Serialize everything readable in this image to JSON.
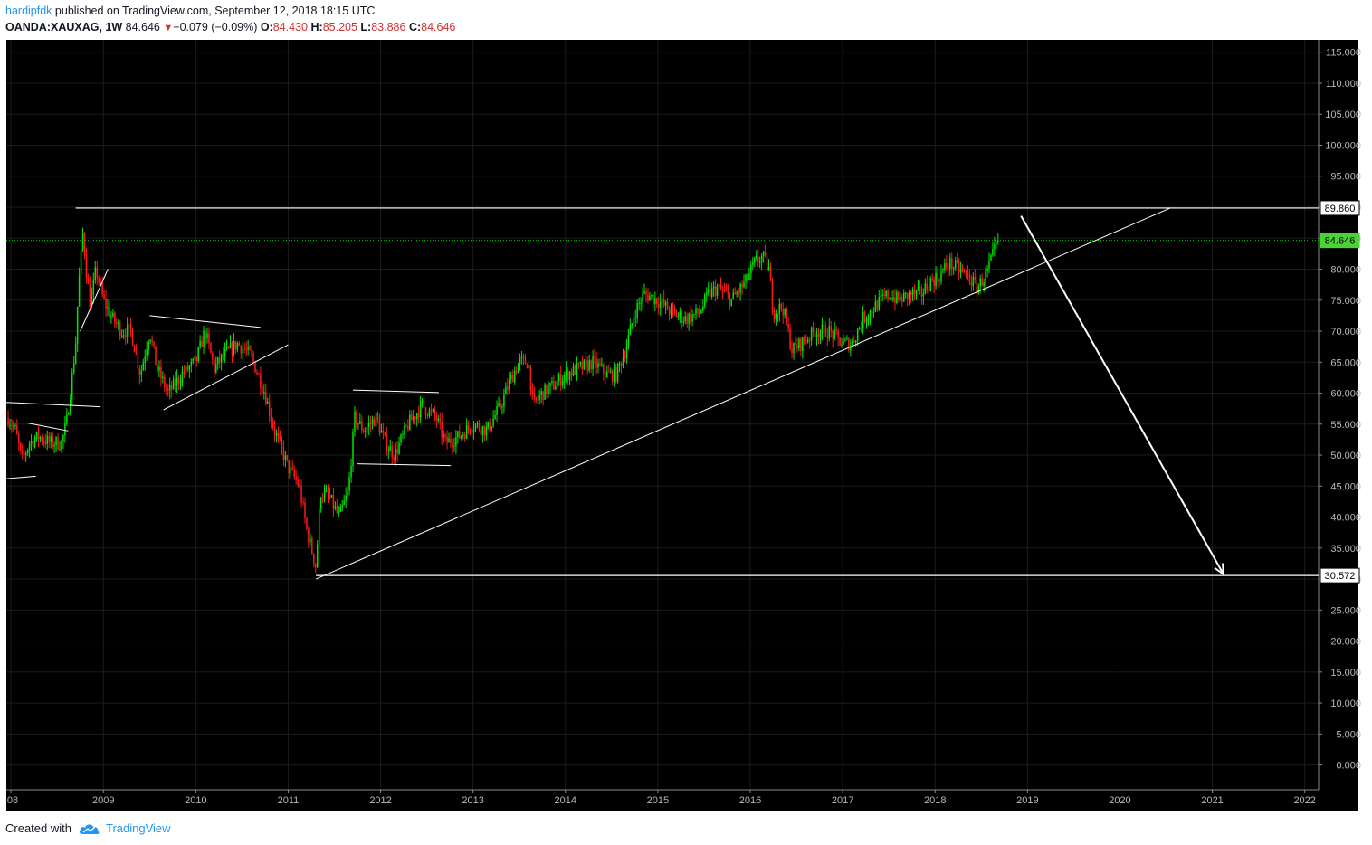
{
  "header": {
    "author": "hardipfdk",
    "published": "published on TradingView.com, September 12, 2018 18:15 UTC",
    "symbol": "OANDA:XAUXAG, 1W",
    "last": "84.646",
    "change": "−0.079 (−0.09%)",
    "o_label": "O:",
    "o_value": "84.430",
    "h_label": "H:",
    "h_value": "85.205",
    "l_label": "L:",
    "l_value": "83.886",
    "c_label": "C:",
    "c_value": "84.646"
  },
  "footer": {
    "created_with": "Created with",
    "brand": "TradingView",
    "logo_icon": "tradingview-cloud-icon"
  },
  "colors": {
    "background": "#000000",
    "up": "#00e600",
    "down": "#ff1a1a",
    "drawing": "#ffffff",
    "price_line": "#00d000",
    "price_label": "#4cd137"
  },
  "chart_data": {
    "type": "candlestick",
    "symbol": "OANDA:XAUXAG",
    "timeframe": "1W",
    "x_axis_labels": [
      "08",
      "2009",
      "2010",
      "2011",
      "2012",
      "2013",
      "2014",
      "2015",
      "2016",
      "2017",
      "2018",
      "2019",
      "2020",
      "2021",
      "2022"
    ],
    "y_axis_labels": [
      "115.000",
      "110.000",
      "105.000",
      "100.000",
      "95.000",
      "90.000",
      "85.000",
      "80.000",
      "75.000",
      "70.000",
      "65.000",
      "60.000",
      "55.000",
      "50.000",
      "45.000",
      "40.000",
      "35.000",
      "30.000",
      "25.000",
      "20.000",
      "15.000",
      "10.000",
      "5.000",
      "0.000"
    ],
    "ylim": [
      -4,
      117
    ],
    "xlim": [
      2007.95,
      2022.15
    ],
    "current_price": 84.646,
    "price_labels": [
      {
        "value": 89.86,
        "text": "89.860"
      },
      {
        "value": 84.646,
        "text": "84.646"
      },
      {
        "value": 30.572,
        "text": "30.572"
      }
    ],
    "horizontal_lines": [
      {
        "x1": 2008.7,
        "x2": 2022.15,
        "y": 89.86
      },
      {
        "x1": 2011.3,
        "x2": 2022.15,
        "y": 30.572
      }
    ],
    "trendlines": [
      {
        "x1": 2011.3,
        "y1": 30.0,
        "x2": 2020.55,
        "y2": 89.9
      },
      {
        "x1": 2008.75,
        "y1": 70.0,
        "x2": 2009.05,
        "y2": 80.0
      },
      {
        "x1": 2009.5,
        "y1": 72.5,
        "x2": 2010.7,
        "y2": 70.6
      },
      {
        "x1": 2009.65,
        "y1": 57.3,
        "x2": 2011.0,
        "y2": 67.8
      },
      {
        "x1": 2007.95,
        "y1": 58.5,
        "x2": 2008.97,
        "y2": 57.8
      },
      {
        "x1": 2008.17,
        "y1": 55.2,
        "x2": 2008.62,
        "y2": 53.9
      },
      {
        "x1": 2007.95,
        "y1": 46.2,
        "x2": 2008.27,
        "y2": 46.6
      },
      {
        "x1": 2011.7,
        "y1": 60.5,
        "x2": 2012.63,
        "y2": 60.1
      },
      {
        "x1": 2011.74,
        "y1": 48.6,
        "x2": 2012.76,
        "y2": 48.3
      }
    ],
    "arrow": {
      "x1": 2018.93,
      "y1": 88.6,
      "x2": 2021.12,
      "y2": 30.8
    },
    "price_anchors": [
      [
        2007.97,
        56
      ],
      [
        2008.05,
        54
      ],
      [
        2008.12,
        49
      ],
      [
        2008.2,
        52
      ],
      [
        2008.3,
        53
      ],
      [
        2008.42,
        52
      ],
      [
        2008.55,
        52
      ],
      [
        2008.6,
        55
      ],
      [
        2008.65,
        61
      ],
      [
        2008.7,
        68
      ],
      [
        2008.73,
        77
      ],
      [
        2008.78,
        86
      ],
      [
        2008.82,
        79
      ],
      [
        2008.86,
        74
      ],
      [
        2008.92,
        80
      ],
      [
        2009.0,
        75
      ],
      [
        2009.1,
        72
      ],
      [
        2009.2,
        70
      ],
      [
        2009.3,
        70
      ],
      [
        2009.4,
        63
      ],
      [
        2009.5,
        70
      ],
      [
        2009.58,
        64
      ],
      [
        2009.7,
        60
      ],
      [
        2009.85,
        63
      ],
      [
        2010.0,
        65
      ],
      [
        2010.1,
        70
      ],
      [
        2010.2,
        64
      ],
      [
        2010.3,
        66
      ],
      [
        2010.45,
        68
      ],
      [
        2010.6,
        66
      ],
      [
        2010.75,
        60
      ],
      [
        2010.85,
        54
      ],
      [
        2011.0,
        48
      ],
      [
        2011.12,
        45
      ],
      [
        2011.2,
        38
      ],
      [
        2011.3,
        32
      ],
      [
        2011.35,
        44
      ],
      [
        2011.45,
        43
      ],
      [
        2011.55,
        40
      ],
      [
        2011.65,
        44
      ],
      [
        2011.72,
        56
      ],
      [
        2011.82,
        54
      ],
      [
        2011.95,
        56
      ],
      [
        2012.05,
        52
      ],
      [
        2012.15,
        50
      ],
      [
        2012.3,
        55
      ],
      [
        2012.45,
        58
      ],
      [
        2012.6,
        56
      ],
      [
        2012.7,
        52
      ],
      [
        2012.85,
        53
      ],
      [
        2013.0,
        55
      ],
      [
        2013.15,
        54
      ],
      [
        2013.3,
        58
      ],
      [
        2013.4,
        62
      ],
      [
        2013.5,
        65
      ],
      [
        2013.6,
        65
      ],
      [
        2013.65,
        58
      ],
      [
        2013.75,
        60
      ],
      [
        2013.85,
        61
      ],
      [
        2014.0,
        63
      ],
      [
        2014.15,
        64
      ],
      [
        2014.3,
        65
      ],
      [
        2014.45,
        63
      ],
      [
        2014.55,
        63
      ],
      [
        2014.65,
        67
      ],
      [
        2014.75,
        73
      ],
      [
        2014.85,
        76
      ],
      [
        2015.0,
        75
      ],
      [
        2015.15,
        73
      ],
      [
        2015.3,
        72
      ],
      [
        2015.45,
        73
      ],
      [
        2015.55,
        76
      ],
      [
        2015.65,
        77
      ],
      [
        2015.8,
        75
      ],
      [
        2015.95,
        78
      ],
      [
        2016.05,
        81
      ],
      [
        2016.13,
        82
      ],
      [
        2016.2,
        80
      ],
      [
        2016.25,
        73
      ],
      [
        2016.35,
        74
      ],
      [
        2016.45,
        67
      ],
      [
        2016.55,
        68
      ],
      [
        2016.7,
        70
      ],
      [
        2016.85,
        70
      ],
      [
        2017.0,
        68
      ],
      [
        2017.1,
        68
      ],
      [
        2017.22,
        72
      ],
      [
        2017.35,
        74
      ],
      [
        2017.5,
        76
      ],
      [
        2017.6,
        75
      ],
      [
        2017.75,
        76
      ],
      [
        2017.85,
        76
      ],
      [
        2017.95,
        78
      ],
      [
        2018.05,
        79
      ],
      [
        2018.15,
        81
      ],
      [
        2018.25,
        80
      ],
      [
        2018.35,
        79
      ],
      [
        2018.45,
        77
      ],
      [
        2018.55,
        79
      ],
      [
        2018.62,
        82
      ],
      [
        2018.69,
        84.646
      ]
    ]
  }
}
